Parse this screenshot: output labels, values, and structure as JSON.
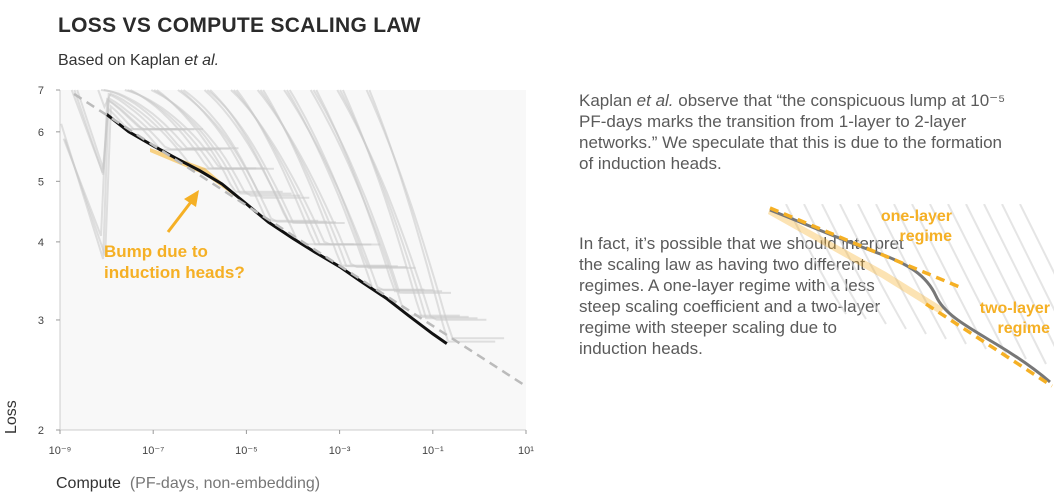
{
  "header": {
    "title": "LOSS VS COMPUTE SCALING LAW",
    "subtitle_prefix": "Based on Kaplan ",
    "subtitle_italic": "et al."
  },
  "chart_data": {
    "type": "line",
    "x_scale": "log",
    "y_scale": "log",
    "xlim": [
      1e-09,
      10
    ],
    "ylim": [
      2,
      7
    ],
    "xlabel": "Compute",
    "xlabel_unit": "(PF-days, non-embedding)",
    "ylabel": "Loss",
    "x_tick_labels": [
      "10⁻⁹",
      "10⁻⁷",
      "10⁻⁵",
      "10⁻³",
      "10⁻¹",
      "10¹"
    ],
    "x_ticks": [
      1e-09,
      1e-07,
      1e-05,
      0.001,
      0.1,
      10
    ],
    "y_tick_labels": [
      "7",
      "6",
      "5",
      "4",
      "3",
      "2"
    ],
    "y_ticks": [
      7,
      6,
      5,
      4,
      3,
      2
    ],
    "grid": false,
    "series": [
      {
        "role": "frontier",
        "color": "#111111",
        "x": [
          1e-08,
          3e-08,
          1e-07,
          3e-07,
          1e-06,
          3e-06,
          1e-05,
          3e-05,
          0.0001,
          0.0003,
          0.001,
          0.003,
          0.01,
          0.03,
          0.1,
          0.2
        ],
        "y": [
          6.4,
          6.0,
          5.7,
          5.45,
          5.2,
          4.95,
          4.6,
          4.3,
          4.05,
          3.85,
          3.65,
          3.45,
          3.25,
          3.05,
          2.85,
          2.75
        ]
      },
      {
        "role": "power-law fit",
        "color": "#bbbbbb",
        "dashed": true,
        "x": [
          2e-09,
          10
        ],
        "y": [
          6.9,
          2.35
        ]
      }
    ],
    "annotation": {
      "text_line1": "Bump due to",
      "text_line2": "induction heads?",
      "color": "#f5b025",
      "points_to": {
        "x": 1e-06,
        "y": 5.3
      }
    }
  },
  "notes": {
    "p1_prefix": "Kaplan ",
    "p1_italic": "et al.",
    "p1_text": " observe that “the conspicuous lump at 10⁻⁵ PF-days marks the transition from 1-layer to 2-layer networks.” We speculate that this is due to the formation of induction heads.",
    "p2_text": "In fact, it’s possible that we should interpret the scaling law as having two different regimes. A one-layer regime with a less steep scaling coefficient and a two-layer regime with steeper scaling due to induction heads."
  },
  "inset": {
    "one_layer_line1": "one-layer",
    "one_layer_line2": "regime",
    "two_layer_line1": "two-layer",
    "two_layer_line2": "regime",
    "accent": "#f5b025"
  }
}
